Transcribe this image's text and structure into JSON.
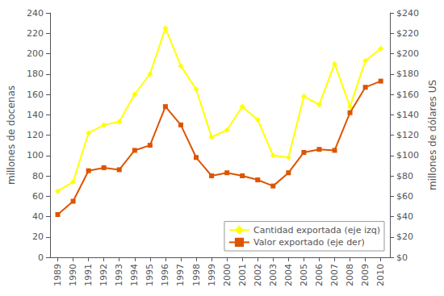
{
  "chart_data": {
    "type": "line",
    "x": [
      1989,
      1990,
      1991,
      1992,
      1993,
      1994,
      1995,
      1996,
      1997,
      1998,
      1999,
      2000,
      2001,
      2002,
      2003,
      2004,
      2005,
      2006,
      2007,
      2008,
      2009,
      2010
    ],
    "xlim": [
      1988.5,
      2010.6
    ],
    "xticks": [
      1989,
      1990,
      1991,
      1992,
      1993,
      1994,
      1995,
      1996,
      1997,
      1998,
      1999,
      2000,
      2001,
      2002,
      2003,
      2004,
      2005,
      2006,
      2007,
      2008,
      2009,
      2010
    ],
    "ylabel": "millones de docenas",
    "y2label": "millones de dólares US",
    "ylim": [
      0,
      240
    ],
    "yticks": [
      0,
      20,
      40,
      60,
      80,
      100,
      120,
      140,
      160,
      180,
      200,
      220,
      240
    ],
    "y2lim": [
      0,
      240
    ],
    "y2ticks": [
      {
        "value": 0,
        "label": "$0"
      },
      {
        "value": 20,
        "label": "$20"
      },
      {
        "value": 40,
        "label": "$40"
      },
      {
        "value": 60,
        "label": "$60"
      },
      {
        "value": 80,
        "label": "$80"
      },
      {
        "value": 100,
        "label": "$100"
      },
      {
        "value": 120,
        "label": "$120"
      },
      {
        "value": 140,
        "label": "$140"
      },
      {
        "value": 160,
        "label": "$160"
      },
      {
        "value": 180,
        "label": "$180"
      },
      {
        "value": 200,
        "label": "$200"
      },
      {
        "value": 220,
        "label": "$220"
      },
      {
        "value": 240,
        "label": "$240"
      }
    ],
    "grid": false,
    "legend": "lower right",
    "series": [
      {
        "name": "Cantidad exportada (eje izq)",
        "color": "#ffff00",
        "marker": "diamond",
        "values": [
          65,
          74,
          122,
          130,
          133,
          160,
          180,
          225,
          188,
          165,
          118,
          125,
          148,
          135,
          100,
          98,
          158,
          150,
          190,
          148,
          193,
          205
        ]
      },
      {
        "name": "Valor exportado (eje der)",
        "color": "#dd5500",
        "marker": "square",
        "axis": "y2",
        "values": [
          42,
          55,
          85,
          88,
          86,
          105,
          110,
          148,
          130,
          98,
          80,
          83,
          80,
          76,
          70,
          83,
          103,
          106,
          105,
          142,
          167,
          173
        ]
      }
    ]
  }
}
